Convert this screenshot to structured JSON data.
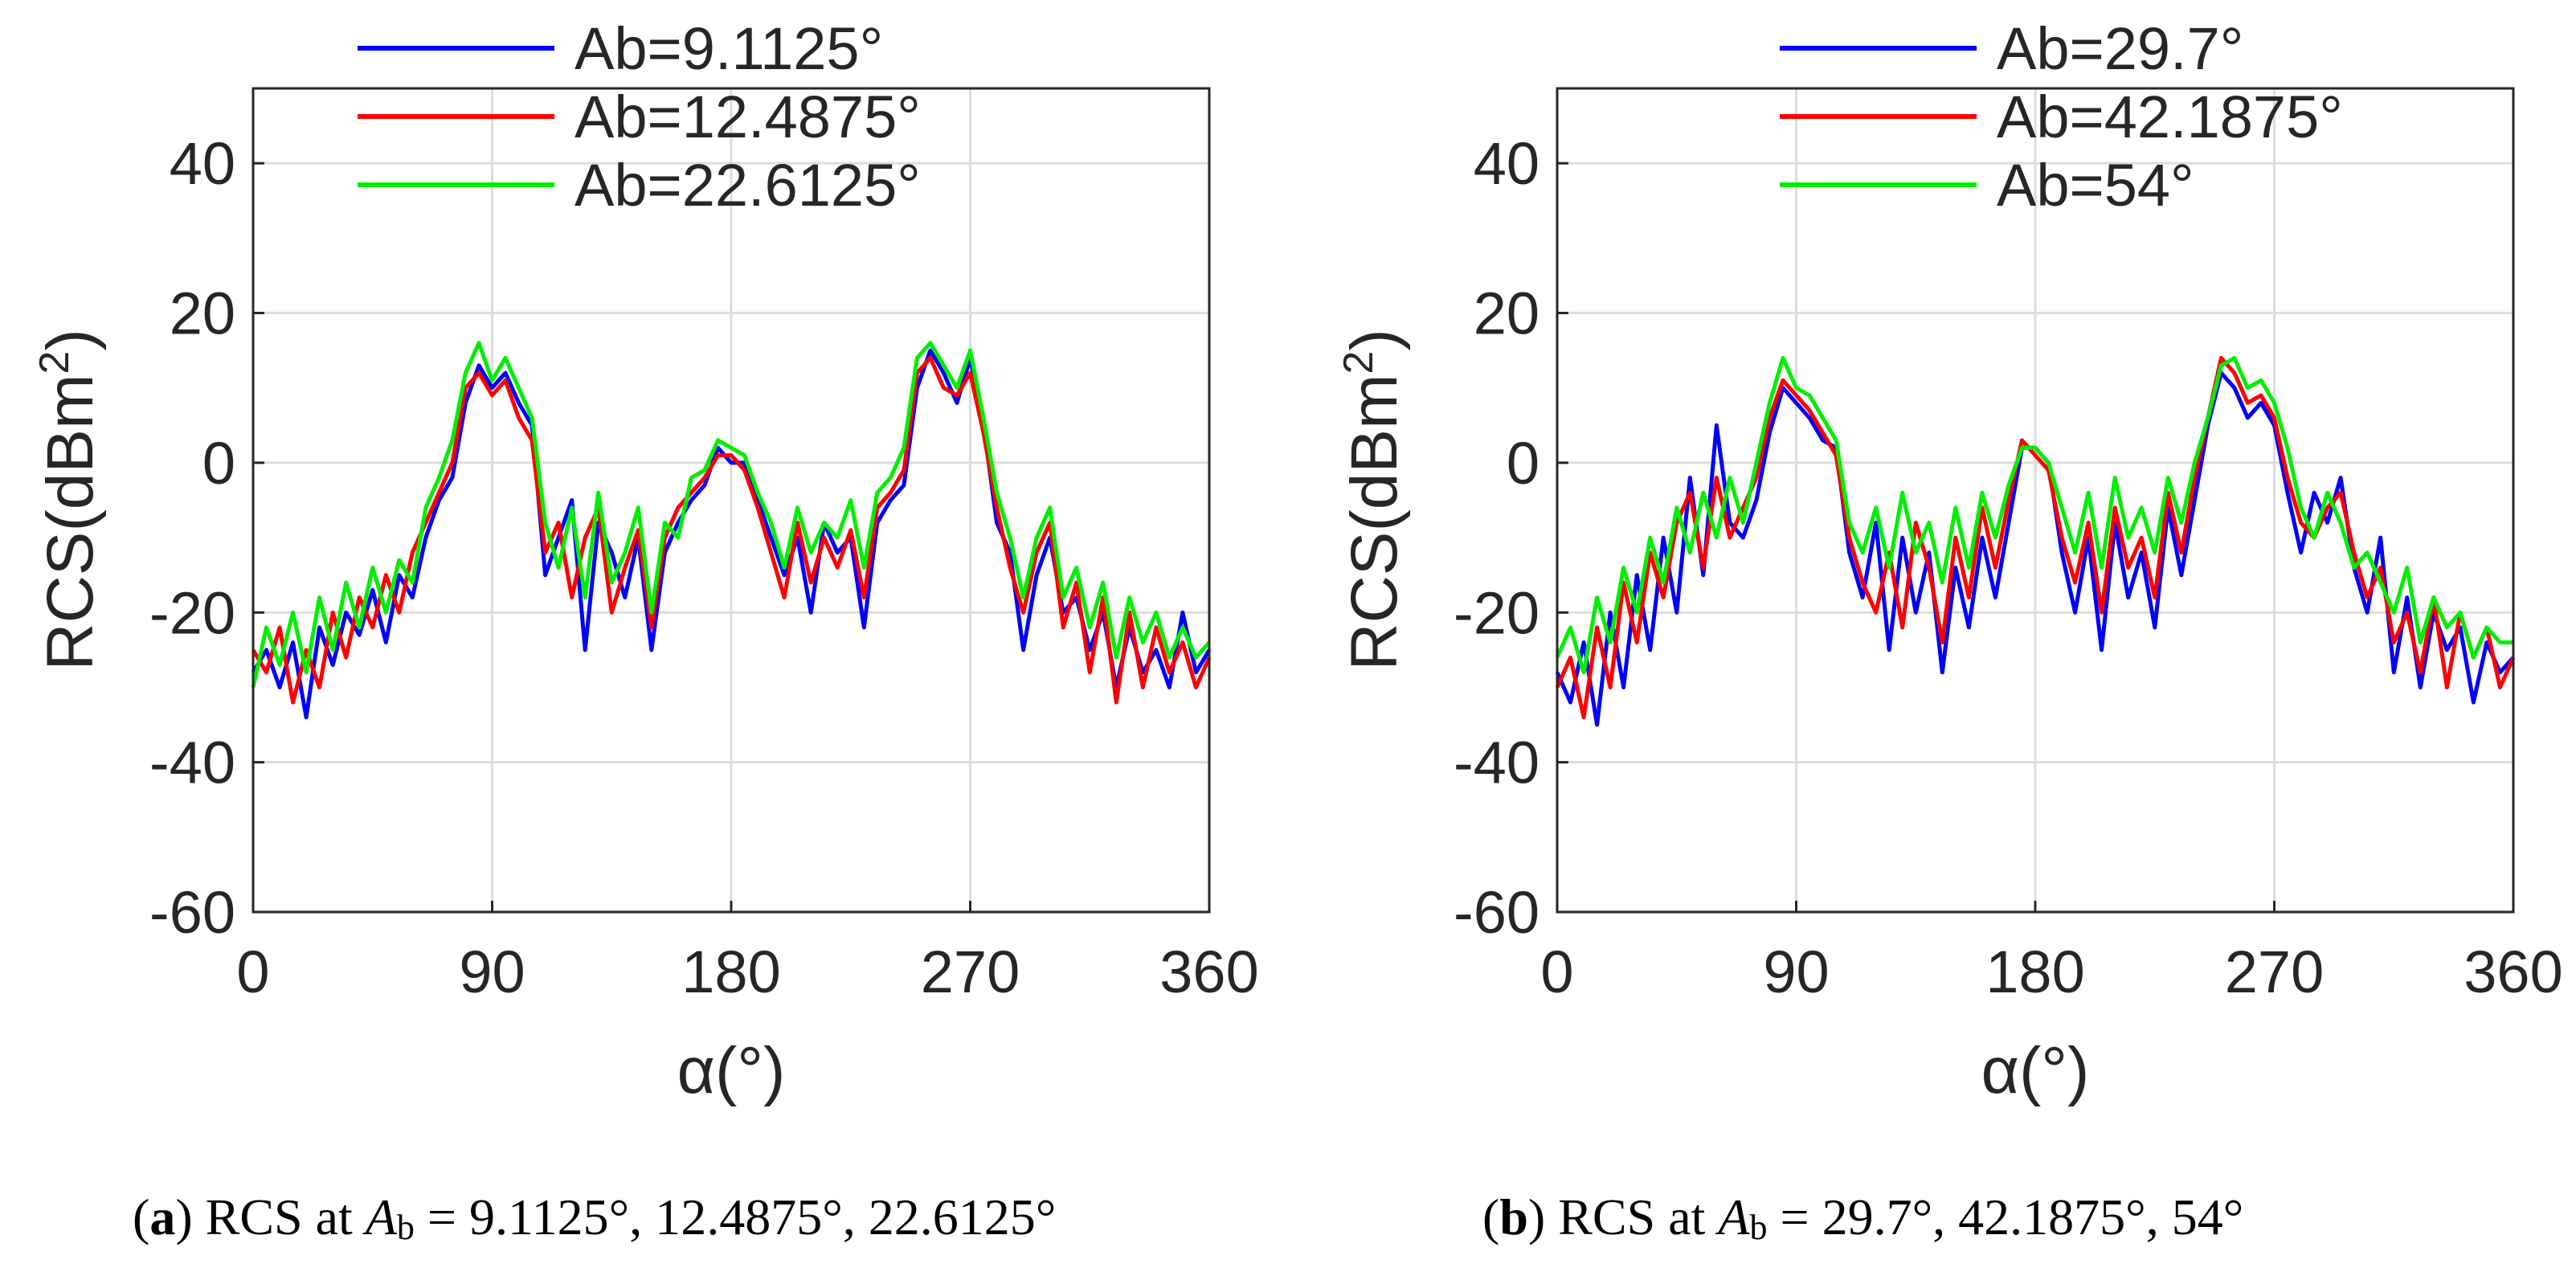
{
  "chart_data": [
    {
      "type": "line",
      "panel": "a",
      "xlabel": "α(°)",
      "ylabel": "RCS(dBm",
      "ylabel_sup": "2",
      "ylabel_end": ")",
      "xlim": [
        0,
        360
      ],
      "ylim": [
        -60,
        50
      ],
      "xticks": [
        0,
        90,
        180,
        270,
        360
      ],
      "yticks": [
        -60,
        -40,
        -20,
        0,
        20,
        40
      ],
      "xtick_labels": [
        "0",
        "90",
        "180",
        "270",
        "360"
      ],
      "ytick_labels": [
        "-60",
        "-40",
        "-20",
        "0",
        "20",
        "40"
      ],
      "grid": true,
      "legend_position": "top",
      "series": [
        {
          "name": "Ab=9.1125°",
          "color": "#0000ff",
          "x": [
            0,
            5,
            10,
            15,
            20,
            25,
            30,
            35,
            40,
            45,
            50,
            55,
            60,
            65,
            70,
            75,
            80,
            85,
            90,
            95,
            100,
            105,
            110,
            115,
            120,
            125,
            130,
            135,
            140,
            145,
            150,
            155,
            160,
            165,
            170,
            175,
            180,
            185,
            190,
            195,
            200,
            205,
            210,
            215,
            220,
            225,
            230,
            235,
            240,
            245,
            250,
            255,
            260,
            265,
            270,
            275,
            280,
            285,
            290,
            295,
            300,
            305,
            310,
            315,
            320,
            325,
            330,
            335,
            340,
            345,
            350,
            355,
            360
          ],
          "values": [
            -28,
            -25,
            -30,
            -24,
            -34,
            -22,
            -27,
            -20,
            -23,
            -17,
            -24,
            -15,
            -18,
            -10,
            -5,
            -2,
            8,
            13,
            10,
            12,
            8,
            5,
            -15,
            -10,
            -5,
            -25,
            -8,
            -12,
            -18,
            -10,
            -25,
            -12,
            -8,
            -5,
            -3,
            2,
            0,
            0,
            -5,
            -10,
            -15,
            -10,
            -20,
            -8,
            -12,
            -10,
            -22,
            -8,
            -5,
            -3,
            10,
            15,
            12,
            8,
            14,
            5,
            -8,
            -12,
            -25,
            -15,
            -10,
            -20,
            -18,
            -25,
            -20,
            -30,
            -22,
            -28,
            -25,
            -30,
            -20,
            -28,
            -25
          ]
        },
        {
          "name": "Ab=12.4875°",
          "color": "#ff0000",
          "x": [
            0,
            5,
            10,
            15,
            20,
            25,
            30,
            35,
            40,
            45,
            50,
            55,
            60,
            65,
            70,
            75,
            80,
            85,
            90,
            95,
            100,
            105,
            110,
            115,
            120,
            125,
            130,
            135,
            140,
            145,
            150,
            155,
            160,
            165,
            170,
            175,
            180,
            185,
            190,
            195,
            200,
            205,
            210,
            215,
            220,
            225,
            230,
            235,
            240,
            245,
            250,
            255,
            260,
            265,
            270,
            275,
            280,
            285,
            290,
            295,
            300,
            305,
            310,
            315,
            320,
            325,
            330,
            335,
            340,
            345,
            350,
            355,
            360
          ],
          "values": [
            -25,
            -28,
            -22,
            -32,
            -25,
            -30,
            -20,
            -26,
            -18,
            -22,
            -15,
            -20,
            -12,
            -8,
            -4,
            0,
            10,
            12,
            9,
            11,
            6,
            3,
            -12,
            -8,
            -18,
            -10,
            -6,
            -20,
            -14,
            -9,
            -22,
            -10,
            -6,
            -4,
            -2,
            1,
            1,
            -1,
            -6,
            -12,
            -18,
            -8,
            -16,
            -10,
            -14,
            -9,
            -18,
            -6,
            -4,
            -1,
            12,
            14,
            10,
            9,
            12,
            4,
            -6,
            -14,
            -20,
            -12,
            -8,
            -22,
            -16,
            -28,
            -18,
            -32,
            -20,
            -30,
            -22,
            -28,
            -24,
            -30,
            -26
          ]
        },
        {
          "name": "Ab=22.6125°",
          "color": "#00ee00",
          "x": [
            0,
            5,
            10,
            15,
            20,
            25,
            30,
            35,
            40,
            45,
            50,
            55,
            60,
            65,
            70,
            75,
            80,
            85,
            90,
            95,
            100,
            105,
            110,
            115,
            120,
            125,
            130,
            135,
            140,
            145,
            150,
            155,
            160,
            165,
            170,
            175,
            180,
            185,
            190,
            195,
            200,
            205,
            210,
            215,
            220,
            225,
            230,
            235,
            240,
            245,
            250,
            255,
            260,
            265,
            270,
            275,
            280,
            285,
            290,
            295,
            300,
            305,
            310,
            315,
            320,
            325,
            330,
            335,
            340,
            345,
            350,
            355,
            360
          ],
          "values": [
            -30,
            -22,
            -27,
            -20,
            -28,
            -18,
            -25,
            -16,
            -22,
            -14,
            -20,
            -13,
            -16,
            -6,
            -2,
            3,
            12,
            16,
            11,
            14,
            10,
            6,
            -8,
            -14,
            -6,
            -18,
            -4,
            -16,
            -12,
            -6,
            -20,
            -8,
            -10,
            -2,
            -1,
            3,
            2,
            1,
            -4,
            -8,
            -14,
            -6,
            -12,
            -8,
            -10,
            -5,
            -14,
            -4,
            -2,
            2,
            14,
            16,
            13,
            10,
            15,
            6,
            -4,
            -10,
            -18,
            -10,
            -6,
            -18,
            -14,
            -22,
            -16,
            -26,
            -18,
            -24,
            -20,
            -26,
            -22,
            -26,
            -24
          ]
        }
      ]
    },
    {
      "type": "line",
      "panel": "b",
      "xlabel": "α(°)",
      "ylabel": "RCS(dBm",
      "ylabel_sup": "2",
      "ylabel_end": ")",
      "xlim": [
        0,
        360
      ],
      "ylim": [
        -60,
        50
      ],
      "xticks": [
        0,
        90,
        180,
        270,
        360
      ],
      "yticks": [
        -60,
        -40,
        -20,
        0,
        20,
        40
      ],
      "xtick_labels": [
        "0",
        "90",
        "180",
        "270",
        "360"
      ],
      "ytick_labels": [
        "-60",
        "-40",
        "-20",
        "0",
        "20",
        "40"
      ],
      "grid": true,
      "legend_position": "top",
      "series": [
        {
          "name": "Ab=29.7°",
          "color": "#0000ff",
          "x": [
            0,
            5,
            10,
            15,
            20,
            25,
            30,
            35,
            40,
            45,
            50,
            55,
            60,
            65,
            70,
            75,
            80,
            85,
            90,
            95,
            100,
            105,
            110,
            115,
            120,
            125,
            130,
            135,
            140,
            145,
            150,
            155,
            160,
            165,
            170,
            175,
            180,
            185,
            190,
            195,
            200,
            205,
            210,
            215,
            220,
            225,
            230,
            235,
            240,
            245,
            250,
            255,
            260,
            265,
            270,
            275,
            280,
            285,
            290,
            295,
            300,
            305,
            310,
            315,
            320,
            325,
            330,
            335,
            340,
            345,
            350,
            355,
            360
          ],
          "values": [
            -28,
            -32,
            -24,
            -35,
            -20,
            -30,
            -15,
            -25,
            -10,
            -20,
            -2,
            -15,
            5,
            -8,
            -10,
            -5,
            4,
            10,
            8,
            6,
            3,
            2,
            -12,
            -18,
            -8,
            -25,
            -10,
            -20,
            -12,
            -28,
            -14,
            -22,
            -10,
            -18,
            -8,
            2,
            2,
            0,
            -12,
            -20,
            -10,
            -25,
            -8,
            -18,
            -12,
            -22,
            -6,
            -15,
            -5,
            5,
            12,
            10,
            6,
            8,
            5,
            -4,
            -12,
            -4,
            -8,
            -2,
            -14,
            -20,
            -10,
            -28,
            -18,
            -30,
            -20,
            -25,
            -22,
            -32,
            -24,
            -28,
            -26
          ]
        },
        {
          "name": "Ab=42.1875°",
          "color": "#ff0000",
          "x": [
            0,
            5,
            10,
            15,
            20,
            25,
            30,
            35,
            40,
            45,
            50,
            55,
            60,
            65,
            70,
            75,
            80,
            85,
            90,
            95,
            100,
            105,
            110,
            115,
            120,
            125,
            130,
            135,
            140,
            145,
            150,
            155,
            160,
            165,
            170,
            175,
            180,
            185,
            190,
            195,
            200,
            205,
            210,
            215,
            220,
            225,
            230,
            235,
            240,
            245,
            250,
            255,
            260,
            265,
            270,
            275,
            280,
            285,
            290,
            295,
            300,
            305,
            310,
            315,
            320,
            325,
            330,
            335,
            340,
            345,
            350,
            355,
            360
          ],
          "values": [
            -30,
            -26,
            -34,
            -22,
            -30,
            -16,
            -24,
            -12,
            -18,
            -8,
            -4,
            -14,
            -2,
            -10,
            -6,
            -2,
            6,
            11,
            9,
            7,
            4,
            1,
            -10,
            -16,
            -20,
            -12,
            -22,
            -8,
            -14,
            -24,
            -10,
            -18,
            -6,
            -14,
            -5,
            3,
            1,
            -1,
            -10,
            -16,
            -8,
            -20,
            -6,
            -14,
            -10,
            -18,
            -4,
            -12,
            -2,
            6,
            14,
            12,
            8,
            9,
            6,
            -2,
            -8,
            -10,
            -6,
            -4,
            -12,
            -18,
            -14,
            -24,
            -20,
            -28,
            -18,
            -30,
            -20,
            -26,
            -22,
            -30,
            -26
          ]
        },
        {
          "name": "Ab=54°",
          "color": "#00ee00",
          "x": [
            0,
            5,
            10,
            15,
            20,
            25,
            30,
            35,
            40,
            45,
            50,
            55,
            60,
            65,
            70,
            75,
            80,
            85,
            90,
            95,
            100,
            105,
            110,
            115,
            120,
            125,
            130,
            135,
            140,
            145,
            150,
            155,
            160,
            165,
            170,
            175,
            180,
            185,
            190,
            195,
            200,
            205,
            210,
            215,
            220,
            225,
            230,
            235,
            240,
            245,
            250,
            255,
            260,
            265,
            270,
            275,
            280,
            285,
            290,
            295,
            300,
            305,
            310,
            315,
            320,
            325,
            330,
            335,
            340,
            345,
            350,
            355,
            360
          ],
          "values": [
            -26,
            -22,
            -28,
            -18,
            -24,
            -14,
            -20,
            -10,
            -16,
            -6,
            -12,
            -4,
            -10,
            -2,
            -8,
            0,
            8,
            14,
            10,
            9,
            6,
            3,
            -8,
            -12,
            -6,
            -14,
            -4,
            -12,
            -8,
            -16,
            -6,
            -14,
            -4,
            -10,
            -3,
            2,
            2,
            0,
            -6,
            -12,
            -4,
            -14,
            -2,
            -10,
            -6,
            -12,
            -2,
            -8,
            0,
            6,
            13,
            14,
            10,
            11,
            8,
            2,
            -6,
            -10,
            -4,
            -8,
            -14,
            -12,
            -16,
            -20,
            -14,
            -24,
            -18,
            -22,
            -20,
            -26,
            -22,
            -24,
            -24
          ]
        }
      ]
    }
  ],
  "captions": [
    {
      "label": "a",
      "text": " RCS at ",
      "var": "A",
      "sub": "b",
      "values": " = 9.1125°, 12.4875°, 22.6125°"
    },
    {
      "label": "b",
      "text": " RCS at ",
      "var": "A",
      "sub": "b",
      "values": " = 29.7°, 42.1875°, 54°"
    }
  ]
}
